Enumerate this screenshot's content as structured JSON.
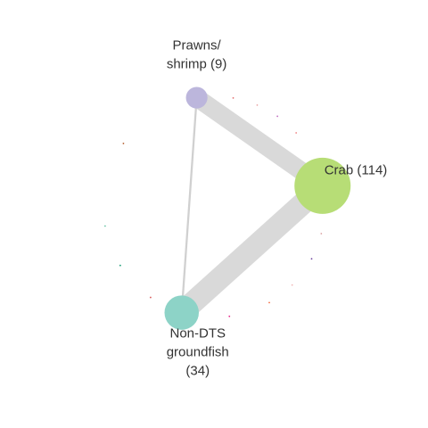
{
  "chart_data": {
    "type": "network",
    "title": "",
    "layout": "circle",
    "colors": {
      "edge": "#d9d9d9",
      "minor_edge": "#d0d0d0"
    },
    "nodes": [
      {
        "id": "prawns",
        "label_lines": [
          "Prawns/",
          "shrimp (9)"
        ],
        "name": "Prawns/shrimp",
        "count": 9,
        "color": "#bcb6dc"
      },
      {
        "id": "crab",
        "label_lines": [
          "Crab (114)"
        ],
        "name": "Crab",
        "count": 114,
        "color": "#b7dd76"
      },
      {
        "id": "nondts",
        "label_lines": [
          "Non-DTS",
          "groundfish",
          "(34)"
        ],
        "name": "Non-DTS groundfish",
        "count": 34,
        "color": "#8dd3c7"
      }
    ],
    "edges": [
      {
        "source": "prawns",
        "target": "crab",
        "weight": 9
      },
      {
        "source": "crab",
        "target": "nondts",
        "weight": 11
      },
      {
        "source": "prawns",
        "target": "nondts",
        "weight": 1
      }
    ],
    "minor_nodes": [
      {
        "id": "m1",
        "color": "#e26b6b"
      },
      {
        "id": "m2",
        "color": "#e9a3a3"
      },
      {
        "id": "m3",
        "color": "#c06cc0"
      },
      {
        "id": "m4",
        "color": "#f08080"
      },
      {
        "id": "m5",
        "color": "#e34a33"
      },
      {
        "id": "m6",
        "color": "#e41a1c"
      },
      {
        "id": "m7",
        "color": "#d9a0a0"
      },
      {
        "id": "m8",
        "color": "#6a3d9a"
      },
      {
        "id": "m9",
        "color": "#f2b8b8"
      },
      {
        "id": "m10",
        "color": "#f46d43"
      },
      {
        "id": "m11",
        "color": "#e7298a"
      },
      {
        "id": "m12",
        "color": "#d95f5f"
      },
      {
        "id": "m13",
        "color": "#1b9e77"
      },
      {
        "id": "m14",
        "color": "#66c2a5"
      },
      {
        "id": "m15",
        "color": "#b15928"
      }
    ]
  }
}
